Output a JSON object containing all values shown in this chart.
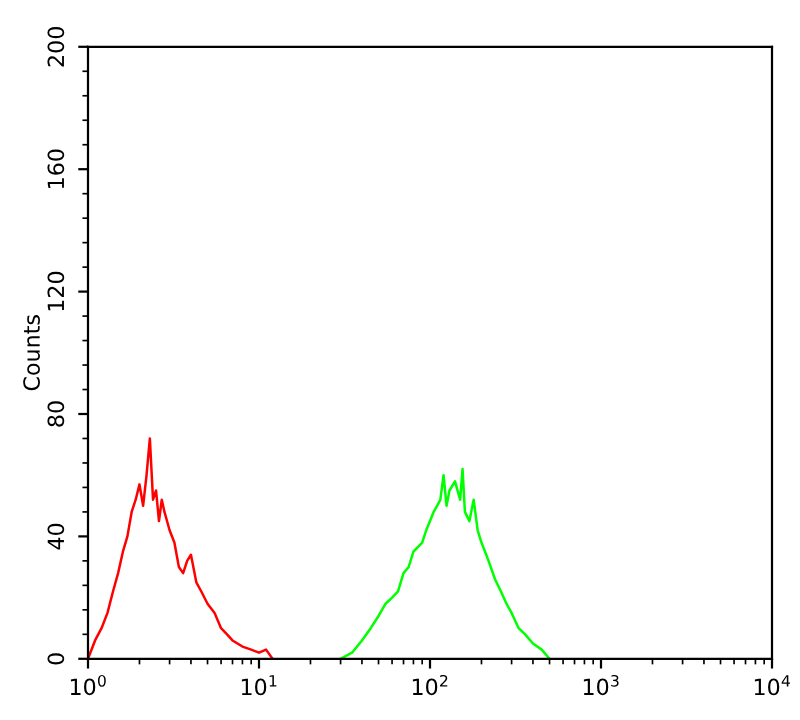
{
  "chart_data": {
    "type": "line",
    "ylabel": "Counts",
    "log": "x",
    "xlim": [
      1,
      10000
    ],
    "xticks": [
      {
        "value": 1,
        "label": "10$^{0}$"
      },
      {
        "value": 10,
        "label": "10$^{1}$"
      },
      {
        "value": 100,
        "label": "10$^{2}$"
      },
      {
        "value": 1000,
        "label": "10$^{3}$"
      },
      {
        "value": 10000,
        "label": "10$^{4}$"
      }
    ],
    "ylim": [
      0,
      200
    ],
    "yticks": [
      0,
      40,
      80,
      120,
      160,
      200
    ],
    "grid": false,
    "legend": false,
    "series": [
      {
        "color": "#ff0000",
        "x": [
          1.0,
          1.1,
          1.2,
          1.3,
          1.4,
          1.5,
          1.6,
          1.7,
          1.8,
          1.9,
          2.0,
          2.1,
          2.2,
          2.3,
          2.4,
          2.5,
          2.6,
          2.7,
          2.8,
          3.0,
          3.2,
          3.4,
          3.6,
          3.8,
          4.0,
          4.3,
          4.6,
          5.0,
          5.5,
          6.0,
          6.5,
          7.0,
          8.0,
          9.0,
          10,
          11,
          12
        ],
        "values": [
          0,
          6,
          10,
          15,
          22,
          28,
          35,
          40,
          48,
          52,
          57,
          50,
          60,
          72,
          52,
          55,
          45,
          52,
          48,
          42,
          38,
          30,
          28,
          32,
          34,
          25,
          22,
          18,
          15,
          10,
          8,
          6,
          4,
          3,
          2,
          3,
          0
        ]
      },
      {
        "color": "#00ff00",
        "x": [
          30,
          35,
          40,
          45,
          50,
          55,
          60,
          65,
          70,
          75,
          80,
          90,
          95,
          100,
          105,
          110,
          115,
          120,
          125,
          130,
          140,
          150,
          155,
          160,
          170,
          180,
          190,
          200,
          220,
          240,
          260,
          280,
          300,
          330,
          360,
          400,
          450,
          500
        ],
        "values": [
          0,
          2,
          6,
          10,
          14,
          18,
          20,
          22,
          28,
          30,
          35,
          38,
          42,
          45,
          48,
          50,
          52,
          60,
          50,
          55,
          58,
          52,
          62,
          48,
          45,
          52,
          42,
          38,
          32,
          26,
          22,
          18,
          15,
          10,
          8,
          5,
          3,
          0
        ]
      }
    ]
  }
}
